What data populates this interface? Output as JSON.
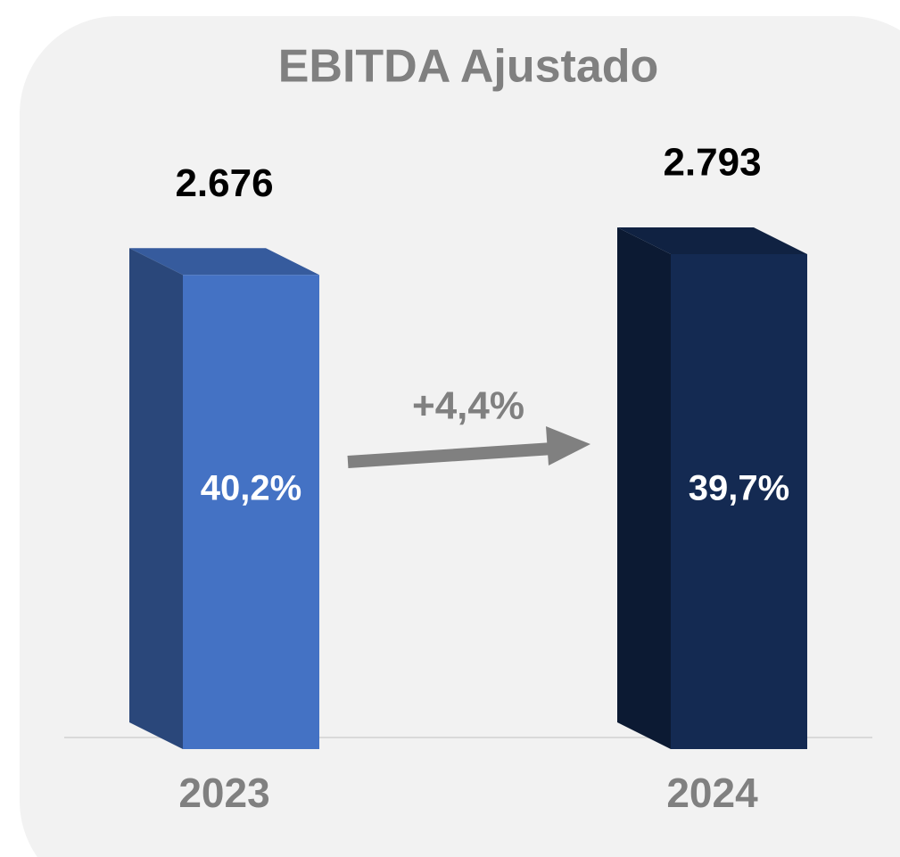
{
  "chart_data": {
    "type": "bar3d",
    "title": "EBITDA Ajustado",
    "categories": [
      "2023",
      "2024"
    ],
    "values": [
      2676,
      2793
    ],
    "value_labels": [
      "2.676",
      "2.793"
    ],
    "colors": [
      "#4472c4",
      "#142a52"
    ],
    "margins": {
      "values": [
        40.2,
        39.7
      ],
      "value_labels": [
        "40,2%",
        "39,7%"
      ]
    },
    "annotation": "+4,4%"
  }
}
